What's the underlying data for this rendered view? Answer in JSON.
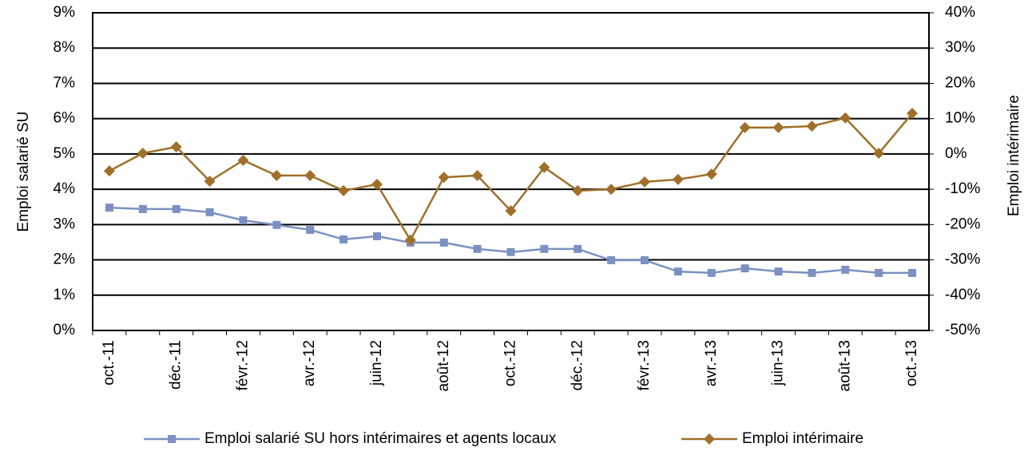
{
  "chart_data": {
    "type": "line",
    "y_label": "Emploi salarié SU",
    "y2_label": "Emploi intérimaire",
    "categories": [
      "oct.-11",
      null,
      "déc.-11",
      null,
      "févr.-12",
      null,
      "avr.-12",
      null,
      "juin-12",
      null,
      "août-12",
      null,
      "oct.-12",
      null,
      "déc.-12",
      null,
      "févr.-13",
      null,
      "avr.-13",
      null,
      "juin-13",
      null,
      "août-13",
      null,
      "oct.-13"
    ],
    "series": [
      {
        "name": "Emploi salarié SU hors intérimaires et agents locaux",
        "color": "#7a91c2",
        "marker": "square",
        "axis": "y",
        "values": [
          3.48,
          3.44,
          3.44,
          3.35,
          3.12,
          2.99,
          2.85,
          2.58,
          2.67,
          2.49,
          2.49,
          2.31,
          2.22,
          2.31,
          2.31,
          1.99,
          1.99,
          1.67,
          1.63,
          1.76,
          1.67,
          1.63,
          1.72,
          1.63,
          1.63
        ]
      },
      {
        "name": "Emploi intérimaire",
        "color": "#a0702a",
        "marker": "diamond",
        "axis": "y2",
        "values": [
          -4.8,
          0.2,
          2.0,
          -7.7,
          -1.8,
          -6.1,
          -6.1,
          -10.4,
          -8.6,
          -24.4,
          -6.6,
          -6.1,
          -16.1,
          -3.8,
          -10.4,
          -10.0,
          -7.9,
          -7.2,
          -5.7,
          7.5,
          7.5,
          7.9,
          10.2,
          0.2,
          11.5
        ]
      }
    ],
    "ylim": [
      0,
      9
    ],
    "yticks": [
      {
        "value": 0,
        "label": "0%"
      },
      {
        "value": 1,
        "label": "1%"
      },
      {
        "value": 2,
        "label": "2%"
      },
      {
        "value": 3,
        "label": "3%"
      },
      {
        "value": 4,
        "label": "4%"
      },
      {
        "value": 5,
        "label": "5%"
      },
      {
        "value": 6,
        "label": "6%"
      },
      {
        "value": 7,
        "label": "7%"
      },
      {
        "value": 8,
        "label": "8%"
      },
      {
        "value": 9,
        "label": "9%"
      }
    ],
    "y2lim": [
      -50,
      40
    ],
    "y2ticks": [
      {
        "value": -50,
        "label": "-50%"
      },
      {
        "value": -40,
        "label": "-40%"
      },
      {
        "value": -30,
        "label": "-30%"
      },
      {
        "value": -20,
        "label": "-20%"
      },
      {
        "value": -10,
        "label": "-10%"
      },
      {
        "value": 0,
        "label": "0%"
      },
      {
        "value": 10,
        "label": "10%"
      },
      {
        "value": 20,
        "label": "20%"
      },
      {
        "value": 30,
        "label": "30%"
      },
      {
        "value": 40,
        "label": "40%"
      }
    ],
    "grid": true,
    "legend": "bottom"
  }
}
